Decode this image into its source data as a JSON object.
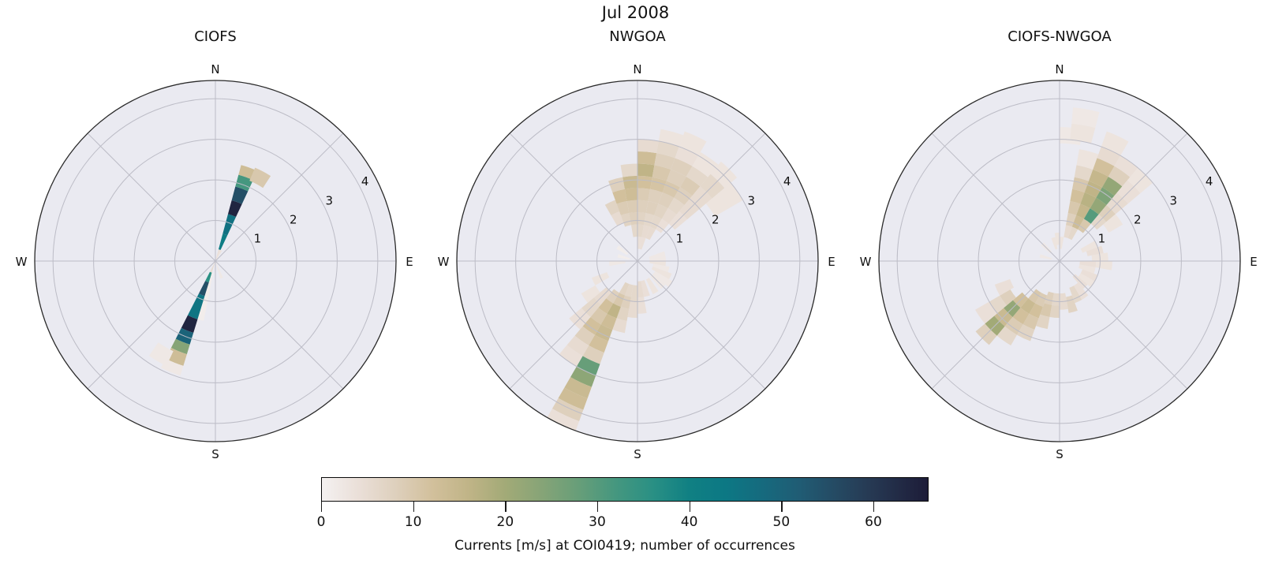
{
  "suptitle": "Jul 2008",
  "colors": {
    "figure_bg": "#ffffff",
    "axes_bg": "#eaeaf1",
    "grid": "#bcbcc6",
    "spine": "#2a2a2a",
    "text": "#111111"
  },
  "chart_data": [
    {
      "type": "polar-rose",
      "title": "CIOFS",
      "compass_labels": {
        "n": "N",
        "e": "E",
        "s": "S",
        "w": "W"
      },
      "r_ticks": [
        1,
        2,
        3,
        4
      ],
      "r_max": 4.45,
      "sector_width_deg": 10,
      "cells_format": [
        "compass_deg",
        "r_inner",
        "r_outer",
        "occurrences"
      ],
      "cells": [
        [
          20,
          0,
          0.3,
          4
        ],
        [
          20,
          0.3,
          0.7,
          42
        ],
        [
          20,
          0.7,
          1.2,
          46
        ],
        [
          20,
          1.2,
          1.55,
          64
        ],
        [
          20,
          1.55,
          1.9,
          55
        ],
        [
          20,
          1.9,
          2.2,
          32
        ],
        [
          20,
          2.2,
          2.45,
          13
        ],
        [
          28,
          2.15,
          2.5,
          10
        ],
        [
          28,
          0,
          0.3,
          3
        ],
        [
          160,
          0.05,
          0.45,
          2
        ],
        [
          196,
          0.3,
          1.5,
          1
        ],
        [
          202,
          0,
          0.3,
          5
        ],
        [
          202,
          0.3,
          0.55,
          36
        ],
        [
          202,
          0.55,
          0.9,
          55
        ],
        [
          202,
          0.9,
          1.5,
          45
        ],
        [
          202,
          1.5,
          1.85,
          64
        ],
        [
          202,
          1.85,
          2.15,
          50
        ],
        [
          202,
          2.15,
          2.4,
          24
        ],
        [
          202,
          2.4,
          2.7,
          13
        ],
        [
          202,
          2.7,
          2.95,
          2
        ],
        [
          210,
          2.45,
          2.85,
          2
        ]
      ]
    },
    {
      "type": "polar-rose",
      "title": "NWGOA",
      "compass_labels": {
        "n": "N",
        "e": "E",
        "s": "S",
        "w": "W"
      },
      "r_ticks": [
        1,
        2,
        3,
        4
      ],
      "r_max": 4.45,
      "sector_width_deg": 10,
      "cells_format": [
        "compass_deg",
        "r_inner",
        "r_outer",
        "occurrences"
      ],
      "cells": [
        [
          335,
          1.0,
          1.3,
          5
        ],
        [
          335,
          1.3,
          1.6,
          7
        ],
        [
          345,
          0.9,
          1.2,
          7
        ],
        [
          345,
          1.2,
          1.5,
          9
        ],
        [
          345,
          1.5,
          1.8,
          12
        ],
        [
          345,
          1.8,
          2.1,
          8
        ],
        [
          355,
          0.6,
          0.9,
          6
        ],
        [
          355,
          0.9,
          1.2,
          8
        ],
        [
          355,
          1.2,
          1.5,
          9
        ],
        [
          355,
          1.5,
          1.8,
          13
        ],
        [
          355,
          1.8,
          2.1,
          14
        ],
        [
          355,
          2.1,
          2.4,
          6
        ],
        [
          5,
          0.3,
          0.6,
          4
        ],
        [
          5,
          0.6,
          0.9,
          6
        ],
        [
          5,
          0.9,
          1.2,
          7
        ],
        [
          5,
          1.2,
          1.5,
          8
        ],
        [
          5,
          1.5,
          1.8,
          9
        ],
        [
          5,
          1.8,
          2.1,
          12
        ],
        [
          5,
          2.1,
          2.4,
          16
        ],
        [
          5,
          2.4,
          2.7,
          13
        ],
        [
          5,
          2.7,
          3.0,
          5
        ],
        [
          15,
          0.3,
          0.6,
          4
        ],
        [
          15,
          0.6,
          0.9,
          5
        ],
        [
          15,
          0.9,
          1.2,
          6
        ],
        [
          15,
          1.2,
          1.5,
          8
        ],
        [
          15,
          1.5,
          1.8,
          8
        ],
        [
          15,
          1.8,
          2.1,
          11
        ],
        [
          15,
          2.1,
          2.4,
          10
        ],
        [
          15,
          2.4,
          2.7,
          8
        ],
        [
          15,
          2.7,
          3.0,
          6
        ],
        [
          15,
          3.0,
          3.3,
          3
        ],
        [
          25,
          0.6,
          0.9,
          5
        ],
        [
          25,
          0.9,
          1.2,
          6
        ],
        [
          25,
          1.2,
          1.5,
          7
        ],
        [
          25,
          1.5,
          1.8,
          8
        ],
        [
          25,
          1.8,
          2.1,
          10
        ],
        [
          25,
          2.1,
          2.4,
          8
        ],
        [
          25,
          2.4,
          2.7,
          8
        ],
        [
          25,
          2.7,
          3.0,
          4
        ],
        [
          25,
          3.0,
          3.4,
          3
        ],
        [
          35,
          0.9,
          1.2,
          4
        ],
        [
          35,
          1.2,
          1.5,
          5
        ],
        [
          35,
          1.5,
          1.8,
          6
        ],
        [
          35,
          1.8,
          2.1,
          8
        ],
        [
          35,
          2.1,
          2.4,
          9
        ],
        [
          35,
          2.4,
          2.7,
          6
        ],
        [
          35,
          2.7,
          3.1,
          3
        ],
        [
          45,
          1.2,
          1.6,
          4
        ],
        [
          45,
          1.6,
          2.0,
          5
        ],
        [
          45,
          2.0,
          2.4,
          5
        ],
        [
          45,
          2.4,
          2.8,
          6
        ],
        [
          45,
          2.8,
          3.2,
          3
        ],
        [
          55,
          2.2,
          2.6,
          3
        ],
        [
          55,
          2.6,
          3.0,
          3
        ],
        [
          75,
          0.3,
          0.7,
          2
        ],
        [
          85,
          0.3,
          0.7,
          2
        ],
        [
          95,
          0.3,
          0.7,
          3
        ],
        [
          105,
          0.4,
          0.8,
          2
        ],
        [
          115,
          0.4,
          0.9,
          3
        ],
        [
          125,
          0.5,
          1.0,
          2
        ],
        [
          135,
          0.5,
          0.9,
          2
        ],
        [
          150,
          0.5,
          0.9,
          3
        ],
        [
          165,
          0.5,
          0.9,
          4
        ],
        [
          175,
          0.5,
          0.9,
          5
        ],
        [
          175,
          0.9,
          1.3,
          4
        ],
        [
          185,
          0.6,
          1.0,
          6
        ],
        [
          185,
          1.0,
          1.4,
          5
        ],
        [
          195,
          0.6,
          0.9,
          6
        ],
        [
          195,
          0.9,
          1.2,
          8
        ],
        [
          195,
          1.2,
          1.5,
          7
        ],
        [
          195,
          1.5,
          1.8,
          5
        ],
        [
          205,
          0.6,
          0.9,
          7
        ],
        [
          205,
          0.9,
          1.2,
          10
        ],
        [
          205,
          1.2,
          1.5,
          16
        ],
        [
          205,
          1.5,
          1.8,
          13
        ],
        [
          205,
          1.8,
          2.1,
          14
        ],
        [
          205,
          2.1,
          2.4,
          12
        ],
        [
          205,
          2.4,
          2.7,
          8
        ],
        [
          205,
          2.7,
          3.0,
          28
        ],
        [
          205,
          3.0,
          3.3,
          23
        ],
        [
          205,
          3.3,
          3.6,
          14
        ],
        [
          205,
          3.6,
          3.9,
          13
        ],
        [
          205,
          3.9,
          4.2,
          8
        ],
        [
          205,
          4.2,
          4.45,
          4
        ],
        [
          215,
          0.9,
          1.2,
          8
        ],
        [
          215,
          1.2,
          1.5,
          12
        ],
        [
          215,
          1.5,
          1.8,
          10
        ],
        [
          215,
          1.8,
          2.1,
          12
        ],
        [
          215,
          2.1,
          2.4,
          8
        ],
        [
          215,
          2.4,
          2.7,
          5
        ],
        [
          215,
          2.7,
          3.0,
          4
        ],
        [
          225,
          1.0,
          1.4,
          5
        ],
        [
          225,
          1.4,
          1.8,
          6
        ],
        [
          225,
          1.8,
          2.2,
          4
        ],
        [
          235,
          1.2,
          1.6,
          3
        ],
        [
          245,
          0.8,
          1.2,
          3
        ],
        [
          265,
          0.3,
          0.7,
          2
        ],
        [
          285,
          0.2,
          0.5,
          1
        ],
        [
          305,
          0.3,
          0.6,
          1
        ]
      ]
    },
    {
      "type": "polar-rose",
      "title": "CIOFS-NWGOA",
      "compass_labels": {
        "n": "N",
        "e": "E",
        "s": "S",
        "w": "W"
      },
      "r_ticks": [
        1,
        2,
        3,
        4
      ],
      "r_max": 4.45,
      "sector_width_deg": 10,
      "cells_format": [
        "compass_deg",
        "r_inner",
        "r_outer",
        "occurrences"
      ],
      "cells": [
        [
          5,
          0.3,
          0.6,
          3
        ],
        [
          5,
          2.9,
          3.3,
          2
        ],
        [
          10,
          3.0,
          3.4,
          3
        ],
        [
          10,
          3.4,
          3.8,
          2
        ],
        [
          15,
          0.6,
          0.9,
          5
        ],
        [
          15,
          0.9,
          1.2,
          8
        ],
        [
          15,
          1.2,
          1.5,
          10
        ],
        [
          15,
          1.5,
          1.8,
          12
        ],
        [
          15,
          1.8,
          2.1,
          10
        ],
        [
          15,
          2.1,
          2.4,
          6
        ],
        [
          15,
          2.4,
          2.8,
          3
        ],
        [
          25,
          0.6,
          0.9,
          6
        ],
        [
          25,
          0.9,
          1.2,
          13
        ],
        [
          25,
          1.2,
          1.5,
          15
        ],
        [
          25,
          1.5,
          1.8,
          17
        ],
        [
          25,
          1.8,
          2.1,
          16
        ],
        [
          25,
          2.1,
          2.4,
          15
        ],
        [
          25,
          2.4,
          2.7,
          12
        ],
        [
          25,
          2.7,
          3.0,
          5
        ],
        [
          25,
          3.0,
          3.4,
          3
        ],
        [
          35,
          0.9,
          1.2,
          10
        ],
        [
          35,
          1.2,
          1.5,
          30
        ],
        [
          35,
          1.5,
          1.8,
          22
        ],
        [
          35,
          1.8,
          2.1,
          25
        ],
        [
          35,
          2.1,
          2.4,
          22
        ],
        [
          35,
          2.4,
          2.7,
          8
        ],
        [
          35,
          2.7,
          3.0,
          4
        ],
        [
          45,
          1.2,
          1.5,
          6
        ],
        [
          45,
          1.5,
          1.8,
          8
        ],
        [
          45,
          1.8,
          2.2,
          5
        ],
        [
          45,
          2.2,
          2.6,
          4
        ],
        [
          45,
          2.6,
          3.0,
          3
        ],
        [
          55,
          1.4,
          1.8,
          3
        ],
        [
          65,
          0.6,
          1.0,
          3
        ],
        [
          75,
          0.7,
          1.1,
          4
        ],
        [
          85,
          0.8,
          1.2,
          3
        ],
        [
          95,
          0.5,
          0.9,
          4
        ],
        [
          95,
          0.9,
          1.3,
          3
        ],
        [
          105,
          0.5,
          0.9,
          3
        ],
        [
          115,
          0.6,
          1.0,
          4
        ],
        [
          125,
          0.6,
          1.0,
          3
        ],
        [
          135,
          0.5,
          0.9,
          4
        ],
        [
          145,
          0.7,
          1.1,
          4
        ],
        [
          155,
          0.7,
          1.1,
          6
        ],
        [
          165,
          0.9,
          1.3,
          7
        ],
        [
          175,
          0.8,
          1.2,
          5
        ],
        [
          185,
          0.8,
          1.1,
          6
        ],
        [
          185,
          1.1,
          1.4,
          7
        ],
        [
          195,
          0.8,
          1.1,
          8
        ],
        [
          195,
          1.1,
          1.4,
          10
        ],
        [
          195,
          1.4,
          1.7,
          7
        ],
        [
          205,
          0.9,
          1.2,
          9
        ],
        [
          205,
          1.2,
          1.5,
          12
        ],
        [
          205,
          1.5,
          1.8,
          10
        ],
        [
          205,
          1.8,
          2.1,
          7
        ],
        [
          215,
          0.9,
          1.2,
          10
        ],
        [
          215,
          1.2,
          1.5,
          14
        ],
        [
          215,
          1.5,
          1.8,
          12
        ],
        [
          215,
          1.8,
          2.1,
          9
        ],
        [
          215,
          2.1,
          2.4,
          6
        ],
        [
          225,
          1.2,
          1.5,
          12
        ],
        [
          225,
          1.5,
          1.8,
          22
        ],
        [
          225,
          1.8,
          2.1,
          14
        ],
        [
          225,
          2.1,
          2.4,
          20
        ],
        [
          225,
          2.4,
          2.7,
          8
        ],
        [
          235,
          1.4,
          1.7,
          8
        ],
        [
          235,
          1.7,
          2.0,
          6
        ],
        [
          235,
          2.0,
          2.4,
          4
        ],
        [
          245,
          1.3,
          1.7,
          4
        ],
        [
          285,
          0.2,
          0.5,
          2
        ],
        [
          315,
          0.3,
          0.6,
          2
        ],
        [
          345,
          0.3,
          0.6,
          3
        ],
        [
          355,
          0.4,
          0.7,
          3
        ]
      ]
    }
  ],
  "colorbar": {
    "label": "Currents [m/s] at COI0419; number of occurrences",
    "ticks": [
      0,
      10,
      20,
      30,
      40,
      50,
      60
    ],
    "vmin": 0,
    "vmax": 66,
    "stops": [
      [
        0,
        "#f4f1f1"
      ],
      [
        4,
        "#eadfd8"
      ],
      [
        8,
        "#ded0bd"
      ],
      [
        12,
        "#d2c09c"
      ],
      [
        16,
        "#c0b487"
      ],
      [
        20,
        "#a2aa77"
      ],
      [
        24,
        "#86a477"
      ],
      [
        28,
        "#679e79"
      ],
      [
        32,
        "#45977f"
      ],
      [
        36,
        "#2a9084"
      ],
      [
        40,
        "#108083"
      ],
      [
        44,
        "#0c7884"
      ],
      [
        48,
        "#166a7e"
      ],
      [
        52,
        "#205c74"
      ],
      [
        56,
        "#254a63"
      ],
      [
        60,
        "#263852"
      ],
      [
        66,
        "#1d1c38"
      ]
    ]
  }
}
